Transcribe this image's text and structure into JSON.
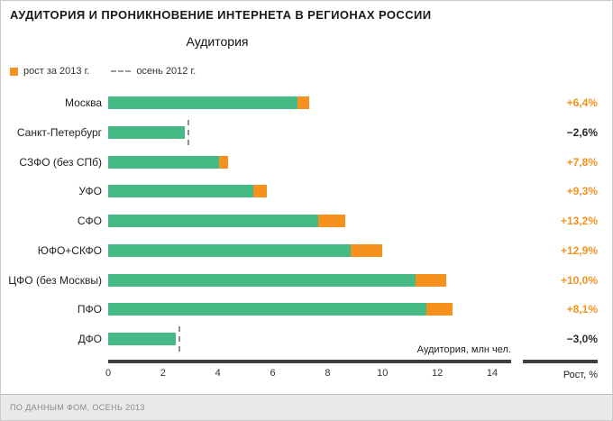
{
  "title": "АУДИТОРИЯ И ПРОНИКНОВЕНИЕ ИНТЕРНЕТА В РЕГИОНАХ РОССИИ",
  "subtitle": "Аудитория",
  "legend": {
    "growth_label": "рост за 2013 г.",
    "autumn_label": "осень 2012 г."
  },
  "axis": {
    "caption": "Аудитория, млн чел.",
    "growth_caption": "Рост, %"
  },
  "footer": {
    "source": "ПО ДАННЫМ ФОМ, ОСЕНЬ 2013"
  },
  "colors": {
    "green": "#46ba85",
    "orange": "#f6911e",
    "negative_text": "#2b2b2b",
    "axis": "#404040",
    "dash": "#8f8f8f"
  },
  "chart_data": {
    "type": "bar",
    "orientation": "horizontal",
    "title": "Аудитория",
    "xlabel": "Аудитория, млн чел.",
    "xlim": [
      0,
      14
    ],
    "x_ticks": [
      0,
      2,
      4,
      6,
      8,
      10,
      12,
      14
    ],
    "grid": false,
    "legend_position": "top-left",
    "categories": [
      "Москва",
      "Санкт-Петербург",
      "СЗФО (без СПб)",
      "УФО",
      "СФО",
      "ЮФО+СКФО",
      "ЦФО (без Москвы)",
      "ПФО",
      "ДФО"
    ],
    "series": [
      {
        "name": "аудитория, млн чел.",
        "values": [
          6.9,
          2.8,
          4.05,
          5.3,
          7.65,
          8.85,
          11.2,
          11.6,
          2.45
        ]
      },
      {
        "name": "рост за 2013 г.",
        "values": [
          0.44,
          0,
          0.32,
          0.49,
          1.01,
          1.14,
          1.12,
          0.94,
          0
        ]
      }
    ],
    "autumn_2012_markers": [
      null,
      2.9,
      null,
      null,
      null,
      null,
      null,
      null,
      2.55
    ],
    "growth_percent": [
      6.4,
      -2.6,
      7.8,
      9.3,
      13.2,
      12.9,
      10.0,
      8.1,
      -3.0
    ],
    "growth_labels": [
      "+6,4%",
      "−2,6%",
      "+7,8%",
      "+9,3%",
      "+13,2%",
      "+12,9%",
      "+10,0%",
      "+8,1%",
      "−3,0%"
    ]
  }
}
